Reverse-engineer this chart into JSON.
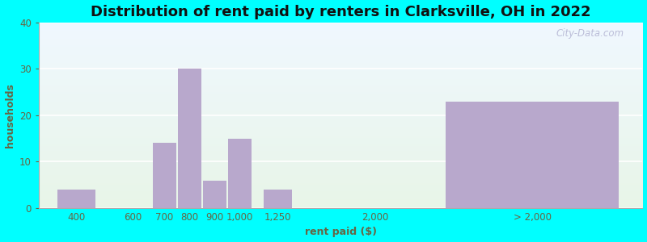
{
  "title": "Distribution of rent paid by renters in Clarksville, OH in 2022",
  "xlabel": "rent paid ($)",
  "ylabel": "households",
  "bar_color": "#b8a8cc",
  "background_color": "#00ffff",
  "ylim": [
    0,
    40
  ],
  "yticks": [
    0,
    10,
    20,
    30,
    40
  ],
  "categories": [
    "400",
    "600",
    "700",
    "800",
    "900",
    "1,000",
    "1,250",
    "2,000",
    "> 2,000"
  ],
  "values": [
    4,
    0,
    14,
    30,
    6,
    15,
    4,
    0,
    23
  ],
  "watermark": "City-Data.com",
  "title_fontsize": 13,
  "label_fontsize": 9,
  "tick_fontsize": 8.5,
  "text_color": "#666644"
}
